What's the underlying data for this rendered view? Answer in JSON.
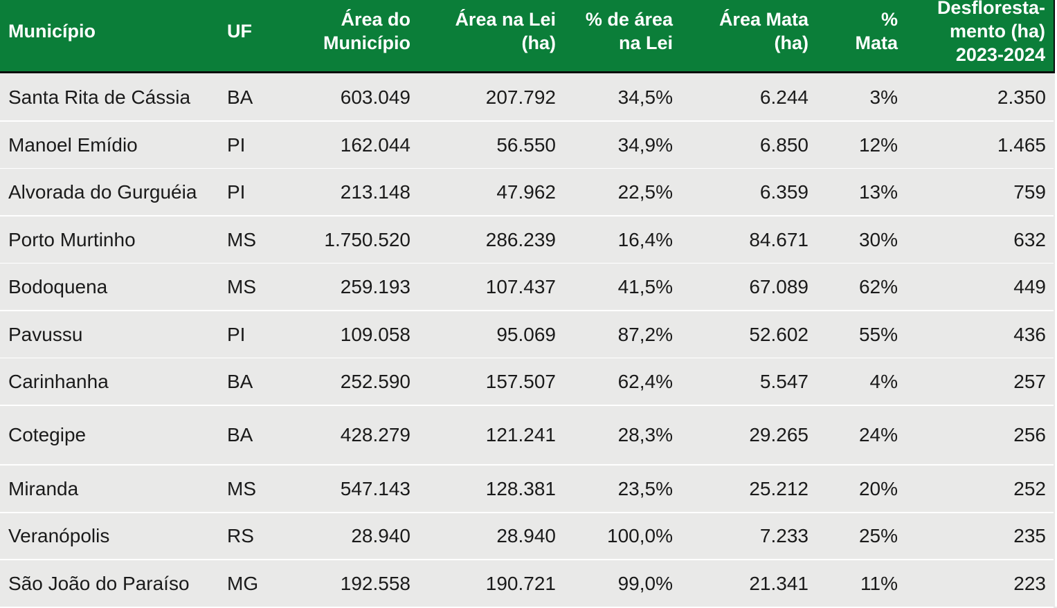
{
  "table": {
    "headers": [
      "Município",
      "UF",
      "Área do\nMunicípio",
      "Área na Lei\n(ha)",
      "% de área\nna Lei",
      "Área Mata\n(ha)",
      "%\nMata",
      "Desfloresta-\nmento (ha)\n2023-2024"
    ],
    "rows": [
      [
        "Santa Rita de Cássia",
        "BA",
        "603.049",
        "207.792",
        "34,5%",
        "6.244",
        "3%",
        "2.350"
      ],
      [
        "Manoel Emídio",
        "PI",
        "162.044",
        "56.550",
        "34,9%",
        "6.850",
        "12%",
        "1.465"
      ],
      [
        "Alvorada do Gurguéia",
        "PI",
        "213.148",
        "47.962",
        "22,5%",
        "6.359",
        "13%",
        "759"
      ],
      [
        "Porto Murtinho",
        "MS",
        "1.750.520",
        "286.239",
        "16,4%",
        "84.671",
        "30%",
        "632"
      ],
      [
        "Bodoquena",
        "MS",
        "259.193",
        "107.437",
        "41,5%",
        "67.089",
        "62%",
        "449"
      ],
      [
        "Pavussu",
        "PI",
        "109.058",
        "95.069",
        "87,2%",
        "52.602",
        "55%",
        "436"
      ],
      [
        "Carinhanha",
        "BA",
        "252.590",
        "157.507",
        "62,4%",
        "5.547",
        "4%",
        "257"
      ],
      [
        "Cotegipe",
        "BA",
        "428.279",
        "121.241",
        "28,3%",
        "29.265",
        "24%",
        "256"
      ],
      [
        "Miranda",
        "MS",
        "547.143",
        "128.381",
        "23,5%",
        "25.212",
        "20%",
        "252"
      ],
      [
        "Veranópolis",
        "RS",
        "28.940",
        "28.940",
        "100,0%",
        "7.233",
        "25%",
        "235"
      ],
      [
        "São João do Paraíso",
        "MG",
        "192.558",
        "190.721",
        "99,0%",
        "21.341",
        "11%",
        "223"
      ]
    ]
  },
  "colors": {
    "header_bg": "#0b7e39",
    "header_text": "#ffffff",
    "row_bg": "#e9e9e8",
    "row_divider": "#ffffff",
    "body_text": "#1a1a1a"
  }
}
